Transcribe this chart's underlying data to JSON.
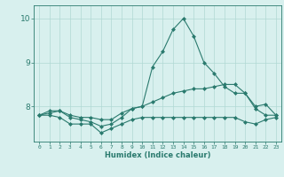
{
  "xlabel": "Humidex (Indice chaleur)",
  "x": [
    0,
    1,
    2,
    3,
    4,
    5,
    6,
    7,
    8,
    9,
    10,
    11,
    12,
    13,
    14,
    15,
    16,
    17,
    18,
    19,
    20,
    21,
    22,
    23
  ],
  "line1": [
    7.8,
    7.9,
    7.9,
    7.75,
    7.7,
    7.65,
    7.55,
    7.6,
    7.75,
    7.95,
    8.0,
    8.9,
    9.25,
    9.75,
    10.0,
    9.6,
    9.0,
    8.75,
    8.45,
    8.3,
    8.3,
    8.0,
    8.05,
    7.8
  ],
  "line2": [
    7.8,
    7.85,
    7.9,
    7.8,
    7.75,
    7.75,
    7.7,
    7.7,
    7.85,
    7.95,
    8.0,
    8.1,
    8.2,
    8.3,
    8.35,
    8.4,
    8.4,
    8.45,
    8.5,
    8.5,
    8.3,
    7.95,
    7.8,
    7.8
  ],
  "line3": [
    7.8,
    7.8,
    7.75,
    7.6,
    7.6,
    7.6,
    7.4,
    7.5,
    7.6,
    7.7,
    7.75,
    7.75,
    7.75,
    7.75,
    7.75,
    7.75,
    7.75,
    7.75,
    7.75,
    7.75,
    7.65,
    7.6,
    7.7,
    7.75
  ],
  "line_color": "#2a7a6e",
  "bg_color": "#d8f0ee",
  "grid_color": "#b0d8d4",
  "ylim": [
    7.2,
    10.3
  ],
  "yticks": [
    8,
    9,
    10
  ],
  "xlim": [
    -0.5,
    23.5
  ]
}
